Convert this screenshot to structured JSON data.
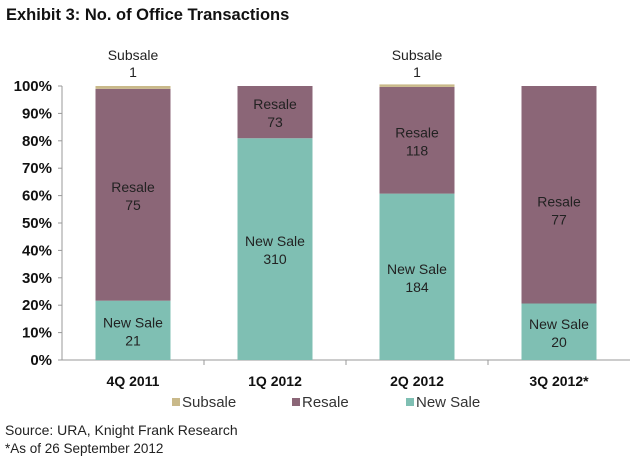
{
  "title": "Exhibit 3: No. of Office Transactions",
  "footer": {
    "source": "Source: URA, Knight Frank Research",
    "note": "*As of 26 September 2012"
  },
  "chart_data": {
    "type": "bar",
    "stacked": true,
    "percent_stacked": true,
    "title": "Exhibit 3: No. of Office Transactions",
    "xlabel": "",
    "ylabel": "",
    "ylim": [
      0,
      100
    ],
    "yticks": [
      "0%",
      "10%",
      "20%",
      "30%",
      "40%",
      "50%",
      "60%",
      "70%",
      "80%",
      "90%",
      "100%"
    ],
    "categories": [
      "4Q 2011",
      "1Q 2012",
      "2Q 2012",
      "3Q 2012*"
    ],
    "series": [
      {
        "name": "New Sale",
        "color": "#7fbfb3",
        "values": [
          21,
          310,
          184,
          20
        ]
      },
      {
        "name": "Resale",
        "color": "#8b6677",
        "values": [
          75,
          73,
          118,
          77
        ]
      },
      {
        "name": "Subsale",
        "color": "#c9b98a",
        "values": [
          1,
          0,
          1,
          0
        ]
      }
    ],
    "legend": {
      "position": "bottom",
      "order": [
        "Subsale",
        "Resale",
        "New Sale"
      ]
    },
    "grid": false
  }
}
